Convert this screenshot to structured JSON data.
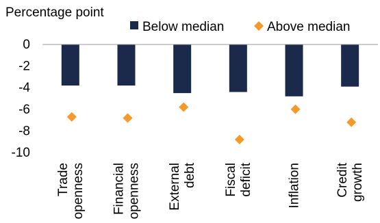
{
  "chart_data": {
    "type": "bar",
    "title": "",
    "ylabel": "Percentage point",
    "ylim": [
      -10,
      0
    ],
    "yticks": [
      "0",
      "-2",
      "-4",
      "-6",
      "-8",
      "-10"
    ],
    "categories": [
      [
        "Trade",
        "openness"
      ],
      [
        "Financial",
        "openness"
      ],
      [
        "External",
        "debt"
      ],
      [
        "Fiscal",
        "deficit"
      ],
      [
        "Inflation"
      ],
      [
        "Credit",
        "growth"
      ]
    ],
    "series": [
      {
        "name": "Below median",
        "kind": "bar",
        "color": "#1b2a4a",
        "values": [
          -3.8,
          -3.8,
          -4.5,
          -4.4,
          -4.8,
          -3.9
        ]
      },
      {
        "name": "Above median",
        "kind": "diamond",
        "color": "#f39a2b",
        "values": [
          -6.7,
          -6.8,
          -5.8,
          -8.8,
          -6.0,
          -7.2
        ]
      }
    ],
    "legend_position": "top",
    "grid": false
  }
}
